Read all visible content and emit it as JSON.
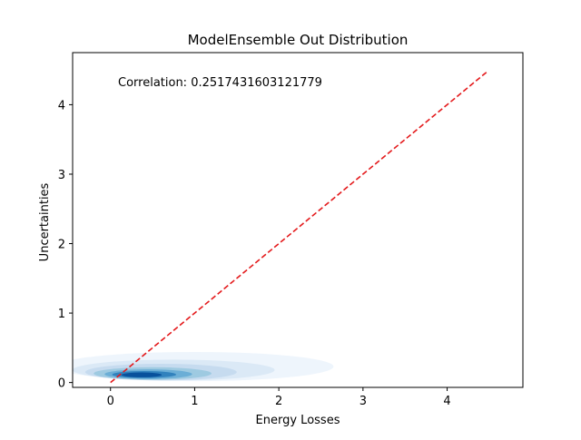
{
  "chart_data": {
    "type": "kde",
    "title": "ModelEnsemble Out Distribution",
    "xlabel": "Energy Losses",
    "ylabel": "Uncertainties",
    "xlim": [
      -0.45,
      4.9
    ],
    "ylim": [
      -0.07,
      4.75
    ],
    "xticks": [
      0,
      1,
      2,
      3,
      4
    ],
    "yticks": [
      0,
      1,
      2,
      3,
      4
    ],
    "annotation": "Correlation: 0.2517431603121779",
    "reference_line": {
      "from": [
        0,
        0
      ],
      "to": [
        4.47,
        4.47
      ],
      "color": "#e41a1c",
      "style": "dashed"
    },
    "density": {
      "palette": "Blues",
      "levels": [
        {
          "cx": 1.0,
          "cy": 0.23,
          "rx": 1.65,
          "ry": 0.21,
          "color": "#eef5fc"
        },
        {
          "cx": 0.75,
          "cy": 0.18,
          "rx": 1.2,
          "ry": 0.15,
          "color": "#dbe9f6"
        },
        {
          "cx": 0.6,
          "cy": 0.15,
          "rx": 0.9,
          "ry": 0.12,
          "color": "#c6dbef"
        },
        {
          "cx": 0.5,
          "cy": 0.13,
          "rx": 0.7,
          "ry": 0.09,
          "color": "#9ecae1"
        },
        {
          "cx": 0.45,
          "cy": 0.12,
          "rx": 0.52,
          "ry": 0.07,
          "color": "#6baed6"
        },
        {
          "cx": 0.4,
          "cy": 0.115,
          "rx": 0.38,
          "ry": 0.05,
          "color": "#3182bd"
        },
        {
          "cx": 0.37,
          "cy": 0.11,
          "rx": 0.24,
          "ry": 0.035,
          "color": "#08519c"
        }
      ]
    }
  }
}
